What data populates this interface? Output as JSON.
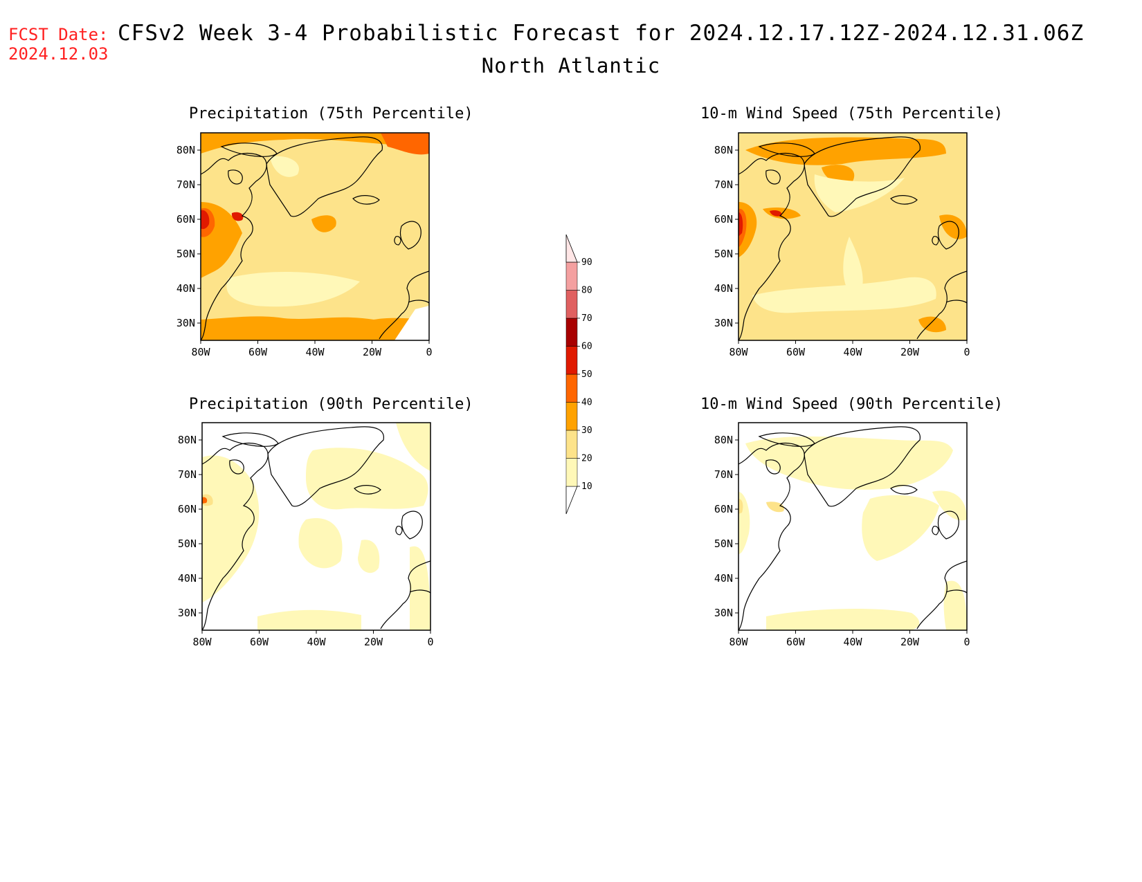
{
  "header": {
    "fcst_label": "FCST Date:",
    "fcst_date": "2024.12.03",
    "title": "CFSv2 Week 3-4 Probabilistic Forecast for 2024.12.17.12Z-2024.12.31.06Z",
    "region": "North Atlantic"
  },
  "panels": [
    {
      "title": "Precipitation (75th Percentile)"
    },
    {
      "title": "10-m Wind Speed (75th Percentile)"
    },
    {
      "title": "Precipitation (90th Percentile)"
    },
    {
      "title": "10-m Wind Speed (90th Percentile)"
    }
  ],
  "axes": {
    "lat_labels": [
      "80N",
      "70N",
      "60N",
      "50N",
      "40N",
      "30N"
    ],
    "lon_labels": [
      "80W",
      "60W",
      "40W",
      "20W",
      "0"
    ]
  },
  "colorbar": {
    "levels": [
      "10",
      "20",
      "30",
      "40",
      "50",
      "60",
      "70",
      "80",
      "90"
    ],
    "colors": [
      "#fff8b8",
      "#fde38a",
      "#ffa200",
      "#ff6600",
      "#e01a00",
      "#a80000",
      "#e06060",
      "#f4a0a0",
      "#ffe6e6"
    ]
  }
}
